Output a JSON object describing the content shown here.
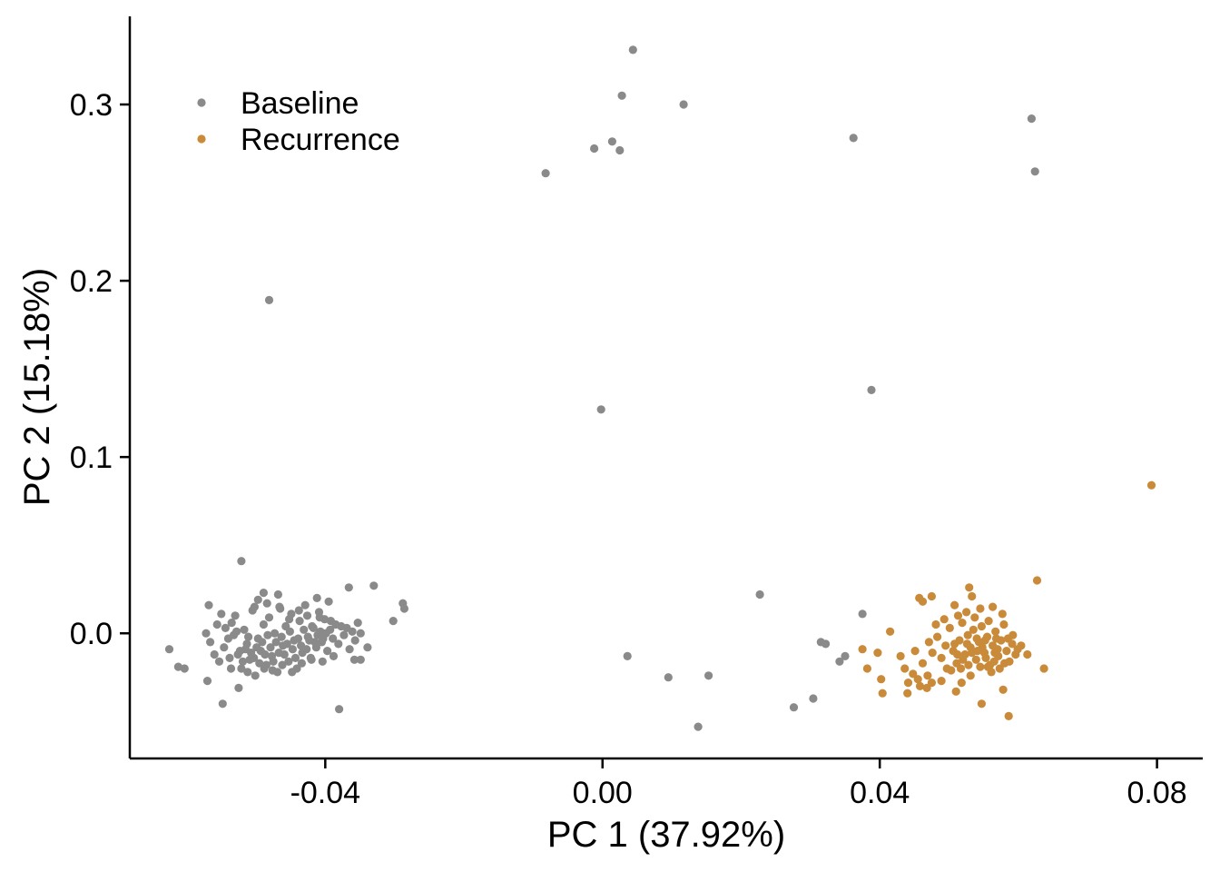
{
  "chart_data": {
    "type": "scatter",
    "xlabel": "PC 1 (37.92%)",
    "ylabel": "PC 2 (15.18%)",
    "xlim": [
      -0.0682,
      0.0866
    ],
    "ylim": [
      -0.071,
      0.35
    ],
    "x_ticks": [
      {
        "value": -0.04,
        "label": "-0.04"
      },
      {
        "value": 0.0,
        "label": "0.00"
      },
      {
        "value": 0.04,
        "label": "0.04"
      },
      {
        "value": 0.08,
        "label": "0.08"
      }
    ],
    "y_ticks": [
      {
        "value": 0.0,
        "label": "0.0"
      },
      {
        "value": 0.1,
        "label": "0.1"
      },
      {
        "value": 0.2,
        "label": "0.2"
      },
      {
        "value": 0.3,
        "label": "0.3"
      }
    ],
    "grid": false,
    "legend_position": "top-left",
    "series": [
      {
        "name": "Baseline",
        "color": "#8a8a8a",
        "points": [
          [
            0.0044,
            0.331
          ],
          [
            0.0028,
            0.305
          ],
          [
            0.0117,
            0.3
          ],
          [
            -0.0082,
            0.261
          ],
          [
            -0.0012,
            0.275
          ],
          [
            0.0014,
            0.279
          ],
          [
            0.0025,
            0.274
          ],
          [
            0.0362,
            0.281
          ],
          [
            0.0619,
            0.292
          ],
          [
            0.0624,
            0.262
          ],
          [
            -0.0481,
            0.189
          ],
          [
            -0.0002,
            0.127
          ],
          [
            0.0388,
            0.138
          ],
          [
            0.0227,
            0.022
          ],
          [
            0.0036,
            -0.013
          ],
          [
            0.0095,
            -0.025
          ],
          [
            0.0153,
            -0.024
          ],
          [
            0.0138,
            -0.053
          ],
          [
            0.0276,
            -0.042
          ],
          [
            0.0304,
            -0.037
          ],
          [
            0.0315,
            -0.005
          ],
          [
            0.0322,
            -0.006
          ],
          [
            0.0342,
            -0.016
          ],
          [
            0.035,
            -0.013
          ],
          [
            0.0375,
            0.011
          ],
          [
            -0.0521,
            0.041
          ],
          [
            -0.0568,
            0.016
          ],
          [
            -0.055,
            0.011
          ],
          [
            -0.0625,
            -0.009
          ],
          [
            -0.0612,
            -0.019
          ],
          [
            -0.0603,
            -0.02
          ],
          [
            -0.057,
            -0.027
          ],
          [
            -0.0548,
            -0.04
          ],
          [
            -0.0525,
            -0.031
          ],
          [
            -0.038,
            -0.043
          ],
          [
            -0.033,
            0.027
          ],
          [
            -0.0288,
            0.017
          ],
          [
            -0.0286,
            0.014
          ],
          [
            -0.0302,
            0.007
          ],
          [
            -0.0366,
            0.026
          ],
          [
            -0.0339,
            -0.008
          ],
          [
            -0.0349,
            -0.015
          ],
          [
            -0.0358,
            -0.015
          ],
          [
            -0.0388,
            -0.013
          ],
          [
            -0.0404,
            -0.016
          ],
          [
            -0.0412,
            0.02
          ],
          [
            -0.0395,
            0.018
          ],
          [
            -0.0468,
            0.022
          ],
          [
            -0.0489,
            0.023
          ],
          [
            -0.0497,
            0.019
          ],
          [
            -0.0556,
            0.005
          ],
          [
            -0.0572,
            0.0
          ],
          [
            -0.0566,
            -0.005
          ],
          [
            -0.056,
            -0.012
          ],
          [
            -0.0553,
            -0.016
          ],
          [
            -0.0546,
            -0.008
          ],
          [
            -0.054,
            -0.003
          ],
          [
            -0.0535,
            0.006
          ],
          [
            -0.053,
            0.01
          ],
          [
            -0.0526,
            -0.012
          ],
          [
            -0.0521,
            -0.02
          ],
          [
            -0.0517,
            0.002
          ],
          [
            -0.0513,
            -0.006
          ],
          [
            -0.0509,
            -0.015
          ],
          [
            -0.0505,
            0.013
          ],
          [
            -0.0501,
            -0.024
          ],
          [
            -0.0497,
            -0.003
          ],
          [
            -0.0493,
            -0.01
          ],
          [
            -0.0489,
            0.005
          ],
          [
            -0.0485,
            -0.018
          ],
          [
            -0.0481,
            0.009
          ],
          [
            -0.0477,
            -0.013
          ],
          [
            -0.0473,
            0.0
          ],
          [
            -0.0469,
            -0.022
          ],
          [
            -0.0465,
            0.014
          ],
          [
            -0.0461,
            -0.007
          ],
          [
            -0.0457,
            0.004
          ],
          [
            -0.0453,
            -0.016
          ],
          [
            -0.0449,
            0.011
          ],
          [
            -0.0445,
            -0.004
          ],
          [
            -0.0441,
            -0.02
          ],
          [
            -0.0437,
            0.007
          ],
          [
            -0.0433,
            -0.011
          ],
          [
            -0.0429,
            0.016
          ],
          [
            -0.0425,
            -0.002
          ],
          [
            -0.0421,
            -0.014
          ],
          [
            -0.0417,
            0.003
          ],
          [
            -0.0413,
            -0.008
          ],
          [
            -0.0409,
            0.012
          ],
          [
            -0.0405,
            -0.005
          ],
          [
            -0.0401,
            0.008
          ],
          [
            -0.0397,
            -0.01
          ],
          [
            -0.0393,
            0.002
          ],
          [
            -0.0389,
            -0.003
          ],
          [
            -0.0385,
            0.005
          ],
          [
            -0.0381,
            -0.006
          ],
          [
            -0.0377,
            0.004
          ],
          [
            -0.0373,
            -0.001
          ],
          [
            -0.0369,
            0.003
          ],
          [
            -0.0365,
            -0.009
          ],
          [
            -0.0361,
            0.001
          ],
          [
            -0.0357,
            -0.004
          ],
          [
            -0.0353,
            0.006
          ],
          [
            -0.0349,
            0.0
          ],
          [
            -0.0544,
            0.003
          ],
          [
            -0.0538,
            -0.014
          ],
          [
            -0.0532,
            -0.001
          ],
          [
            -0.0528,
            0.001
          ],
          [
            -0.0523,
            -0.01
          ],
          [
            -0.0519,
            -0.016
          ],
          [
            -0.0515,
            -0.009
          ],
          [
            -0.0511,
            -0.002
          ],
          [
            -0.0507,
            -0.011
          ],
          [
            -0.0503,
            -0.014
          ],
          [
            -0.0499,
            -0.008
          ],
          [
            -0.0495,
            -0.017
          ],
          [
            -0.0491,
            -0.005
          ],
          [
            -0.0487,
            -0.012
          ],
          [
            -0.0483,
            -0.001
          ],
          [
            -0.0479,
            -0.008
          ],
          [
            -0.0475,
            -0.016
          ],
          [
            -0.0471,
            -0.005
          ],
          [
            -0.0467,
            -0.011
          ],
          [
            -0.0463,
            -0.002
          ],
          [
            -0.0459,
            -0.012
          ],
          [
            -0.0455,
            -0.006
          ],
          [
            -0.0451,
            0.001
          ],
          [
            -0.0447,
            -0.009
          ],
          [
            -0.0443,
            -0.014
          ],
          [
            -0.0439,
            -0.003
          ],
          [
            -0.0435,
            -0.007
          ],
          [
            -0.0431,
            0.002
          ],
          [
            -0.0427,
            -0.009
          ],
          [
            -0.0423,
            -0.004
          ],
          [
            -0.0419,
            0.004
          ],
          [
            -0.0415,
            -0.005
          ],
          [
            -0.0411,
            -0.001
          ],
          [
            -0.0407,
            0.001
          ],
          [
            -0.0403,
            -0.003
          ],
          [
            -0.0399,
            0.0
          ],
          [
            -0.0536,
            -0.02
          ],
          [
            -0.0512,
            -0.022
          ],
          [
            -0.0488,
            -0.02
          ],
          [
            -0.0476,
            -0.021
          ],
          [
            -0.0462,
            -0.018
          ],
          [
            -0.0448,
            -0.022
          ],
          [
            -0.0434,
            -0.017
          ],
          [
            -0.042,
            -0.015
          ],
          [
            -0.0502,
            0.015
          ],
          [
            -0.0484,
            0.017
          ],
          [
            -0.0466,
            0.015
          ],
          [
            -0.0452,
            0.008
          ],
          [
            -0.0438,
            0.013
          ],
          [
            -0.0426,
            0.01
          ],
          [
            -0.0408,
            0.009
          ],
          [
            -0.0392,
            0.007
          ]
        ]
      },
      {
        "name": "Recurrence",
        "color": "#c98a3a",
        "points": [
          [
            0.0792,
            0.084
          ],
          [
            0.0627,
            0.03
          ],
          [
            0.0529,
            0.026
          ],
          [
            0.0533,
            0.021
          ],
          [
            0.0475,
            0.021
          ],
          [
            0.0457,
            0.02
          ],
          [
            0.0462,
            0.018
          ],
          [
            0.0508,
            0.016
          ],
          [
            0.0563,
            0.015
          ],
          [
            0.0375,
            -0.009
          ],
          [
            0.0415,
            0.001
          ],
          [
            0.0397,
            -0.011
          ],
          [
            0.0382,
            -0.02
          ],
          [
            0.0402,
            -0.026
          ],
          [
            0.0404,
            -0.034
          ],
          [
            0.044,
            -0.034
          ],
          [
            0.0458,
            -0.03
          ],
          [
            0.0475,
            -0.028
          ],
          [
            0.051,
            -0.033
          ],
          [
            0.0547,
            -0.04
          ],
          [
            0.0578,
            -0.032
          ],
          [
            0.0586,
            -0.047
          ],
          [
            0.0637,
            -0.02
          ],
          [
            0.0613,
            -0.012
          ],
          [
            0.0604,
            -0.007
          ],
          [
            0.043,
            -0.013
          ],
          [
            0.0436,
            -0.02
          ],
          [
            0.0448,
            -0.023
          ],
          [
            0.0462,
            -0.017
          ],
          [
            0.0469,
            -0.024
          ],
          [
            0.0476,
            -0.011
          ],
          [
            0.0483,
            -0.002
          ],
          [
            0.0489,
            -0.014
          ],
          [
            0.0495,
            -0.007
          ],
          [
            0.0501,
            0.003
          ],
          [
            0.0506,
            -0.01
          ],
          [
            0.0511,
            -0.017
          ],
          [
            0.0515,
            -0.004
          ],
          [
            0.0519,
            0.006
          ],
          [
            0.0523,
            -0.012
          ],
          [
            0.0527,
            -0.001
          ],
          [
            0.0531,
            -0.008
          ],
          [
            0.0535,
            0.002
          ],
          [
            0.0539,
            -0.015
          ],
          [
            0.0543,
            -0.005
          ],
          [
            0.0547,
            0.004
          ],
          [
            0.0551,
            -0.011
          ],
          [
            0.0555,
            -0.002
          ],
          [
            0.0559,
            -0.018
          ],
          [
            0.0563,
            -0.007
          ],
          [
            0.0567,
            0.001
          ],
          [
            0.0571,
            -0.013
          ],
          [
            0.0575,
            -0.004
          ],
          [
            0.0579,
            0.005
          ],
          [
            0.0583,
            -0.01
          ],
          [
            0.0587,
            -0.016
          ],
          [
            0.0591,
            -0.006
          ],
          [
            0.0596,
            -0.012
          ],
          [
            0.0503,
            -0.021
          ],
          [
            0.0517,
            -0.02
          ],
          [
            0.0531,
            -0.024
          ],
          [
            0.0545,
            -0.019
          ],
          [
            0.0561,
            -0.022
          ],
          [
            0.0573,
            -0.02
          ],
          [
            0.0489,
            -0.027
          ],
          [
            0.0497,
            -0.02
          ],
          [
            0.052,
            -0.015
          ],
          [
            0.0541,
            -0.01
          ],
          [
            0.0553,
            -0.014
          ],
          [
            0.0565,
            -0.016
          ],
          [
            0.0508,
            -0.006
          ],
          [
            0.0526,
            -0.006
          ],
          [
            0.0548,
            -0.008
          ],
          [
            0.057,
            -0.009
          ],
          [
            0.0585,
            -0.003
          ],
          [
            0.0493,
            0.008
          ],
          [
            0.0513,
            0.01
          ],
          [
            0.0537,
            0.009
          ],
          [
            0.0557,
            0.007
          ],
          [
            0.0577,
            0.011
          ],
          [
            0.0525,
            0.012
          ],
          [
            0.0545,
            0.014
          ],
          [
            0.0481,
            0.005
          ],
          [
            0.0471,
            -0.005
          ],
          [
            0.0451,
            -0.01
          ],
          [
            0.0441,
            -0.028
          ],
          [
            0.0455,
            -0.026
          ],
          [
            0.0468,
            -0.031
          ],
          [
            0.0518,
            -0.028
          ],
          [
            0.0533,
            -0.011
          ],
          [
            0.0552,
            -0.004
          ],
          [
            0.0566,
            -0.011
          ],
          [
            0.058,
            -0.017
          ],
          [
            0.0592,
            -0.001
          ],
          [
            0.0599,
            -0.009
          ],
          [
            0.0512,
            -0.012
          ],
          [
            0.0528,
            -0.018
          ],
          [
            0.054,
            -0.003
          ],
          [
            0.0556,
            -0.019
          ],
          [
            0.0568,
            -0.003
          ]
        ]
      }
    ]
  }
}
